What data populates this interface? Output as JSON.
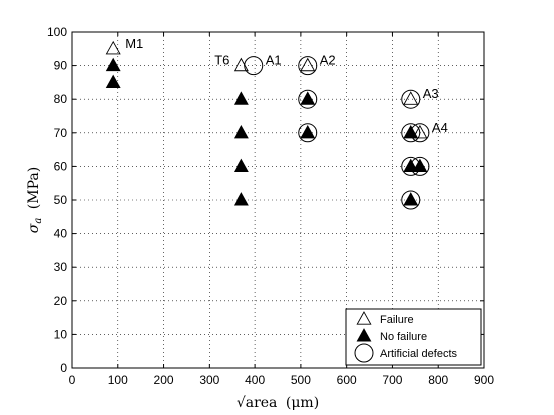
{
  "chart_data": {
    "type": "scatter",
    "xlabel_main": "√area",
    "xlabel_unit": "(μm)",
    "ylabel_symbol": "σ",
    "ylabel_sub": "a",
    "ylabel_unit": "(MPa)",
    "xlim": [
      0,
      900
    ],
    "ylim": [
      0,
      100
    ],
    "xticks": [
      0,
      100,
      200,
      300,
      400,
      500,
      600,
      700,
      800,
      900
    ],
    "yticks": [
      0,
      10,
      20,
      30,
      40,
      50,
      60,
      70,
      80,
      90,
      100
    ],
    "grid": "dotted",
    "legend_position": "bottom-right",
    "series": [
      {
        "name": "Failure",
        "marker": "open-triangle",
        "points": [
          [
            90,
            95
          ],
          [
            370,
            90
          ],
          [
            515,
            90
          ],
          [
            740,
            80
          ],
          [
            760,
            70
          ]
        ]
      },
      {
        "name": "No failure",
        "marker": "filled-triangle",
        "points": [
          [
            90,
            90
          ],
          [
            90,
            85
          ],
          [
            370,
            80
          ],
          [
            370,
            70
          ],
          [
            370,
            60
          ],
          [
            370,
            50
          ],
          [
            515,
            80
          ],
          [
            515,
            70
          ],
          [
            740,
            70
          ],
          [
            740,
            60
          ],
          [
            760,
            60
          ],
          [
            740,
            50
          ]
        ]
      },
      {
        "name": "Artificial defects",
        "marker": "open-circle",
        "points": [
          [
            397,
            90
          ],
          [
            515,
            90
          ],
          [
            515,
            80
          ],
          [
            515,
            70
          ],
          [
            740,
            80
          ],
          [
            740,
            70
          ],
          [
            760,
            70
          ],
          [
            740,
            60
          ],
          [
            760,
            60
          ],
          [
            740,
            50
          ]
        ]
      }
    ],
    "annotations": [
      {
        "text": "M1",
        "x": 90,
        "y": 95,
        "side": "right"
      },
      {
        "text": "T6",
        "x": 370,
        "y": 90,
        "side": "left"
      },
      {
        "text": "A1",
        "x": 397,
        "y": 90,
        "side": "right"
      },
      {
        "text": "A2",
        "x": 515,
        "y": 90,
        "side": "right"
      },
      {
        "text": "A3",
        "x": 740,
        "y": 80,
        "side": "right"
      },
      {
        "text": "A4",
        "x": 760,
        "y": 70,
        "side": "right"
      }
    ]
  }
}
